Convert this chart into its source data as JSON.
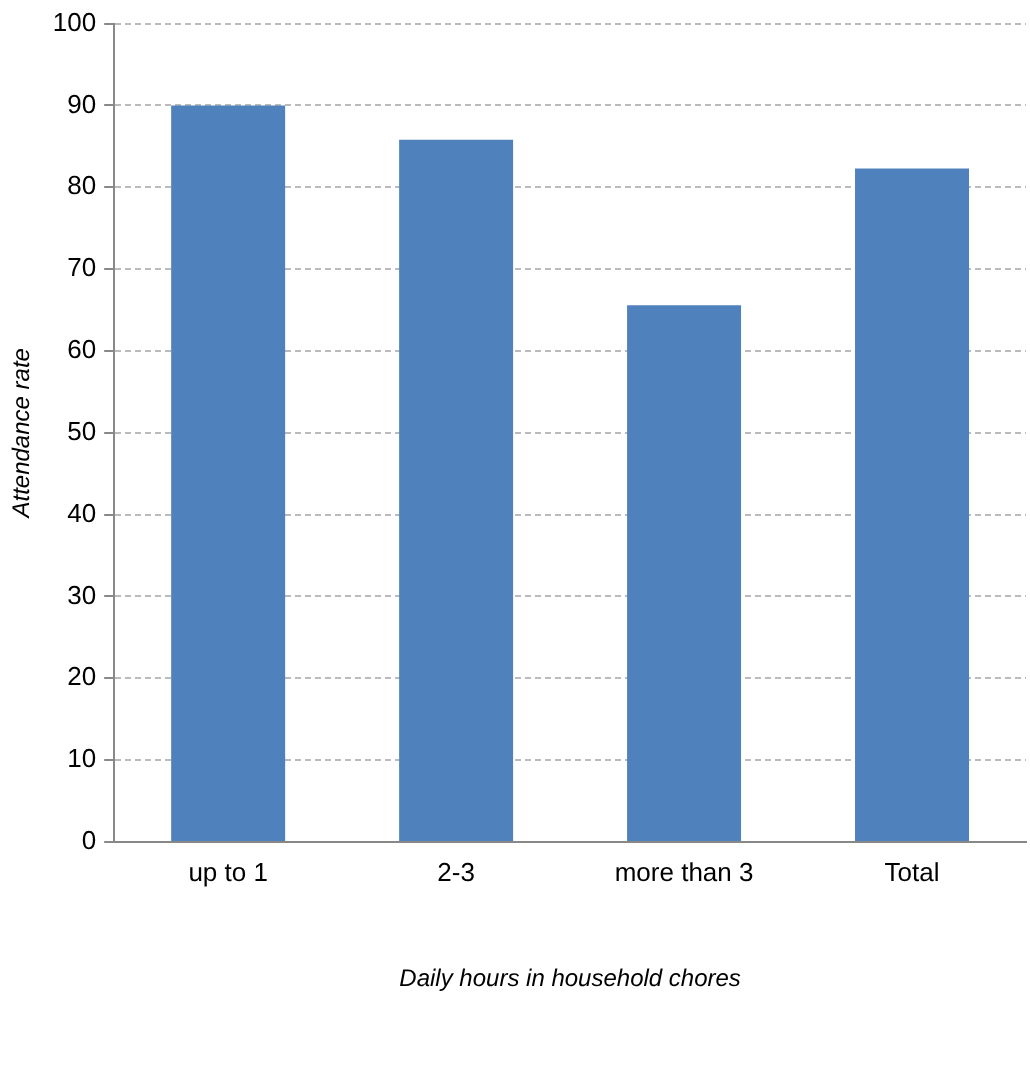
{
  "chart_data": {
    "type": "bar",
    "xlabel": "Daily hours in household chores",
    "ylabel": "Attendance rate",
    "categories": [
      "up to 1",
      "2-3",
      "more than 3",
      "Total"
    ],
    "values": [
      90,
      85.8,
      65.6,
      82.3
    ],
    "color": "#4f81bd",
    "ylim": [
      0,
      100
    ],
    "yticks": [
      0,
      10,
      20,
      30,
      40,
      50,
      60,
      70,
      80,
      90,
      100
    ],
    "grid": "y",
    "legend": false
  }
}
